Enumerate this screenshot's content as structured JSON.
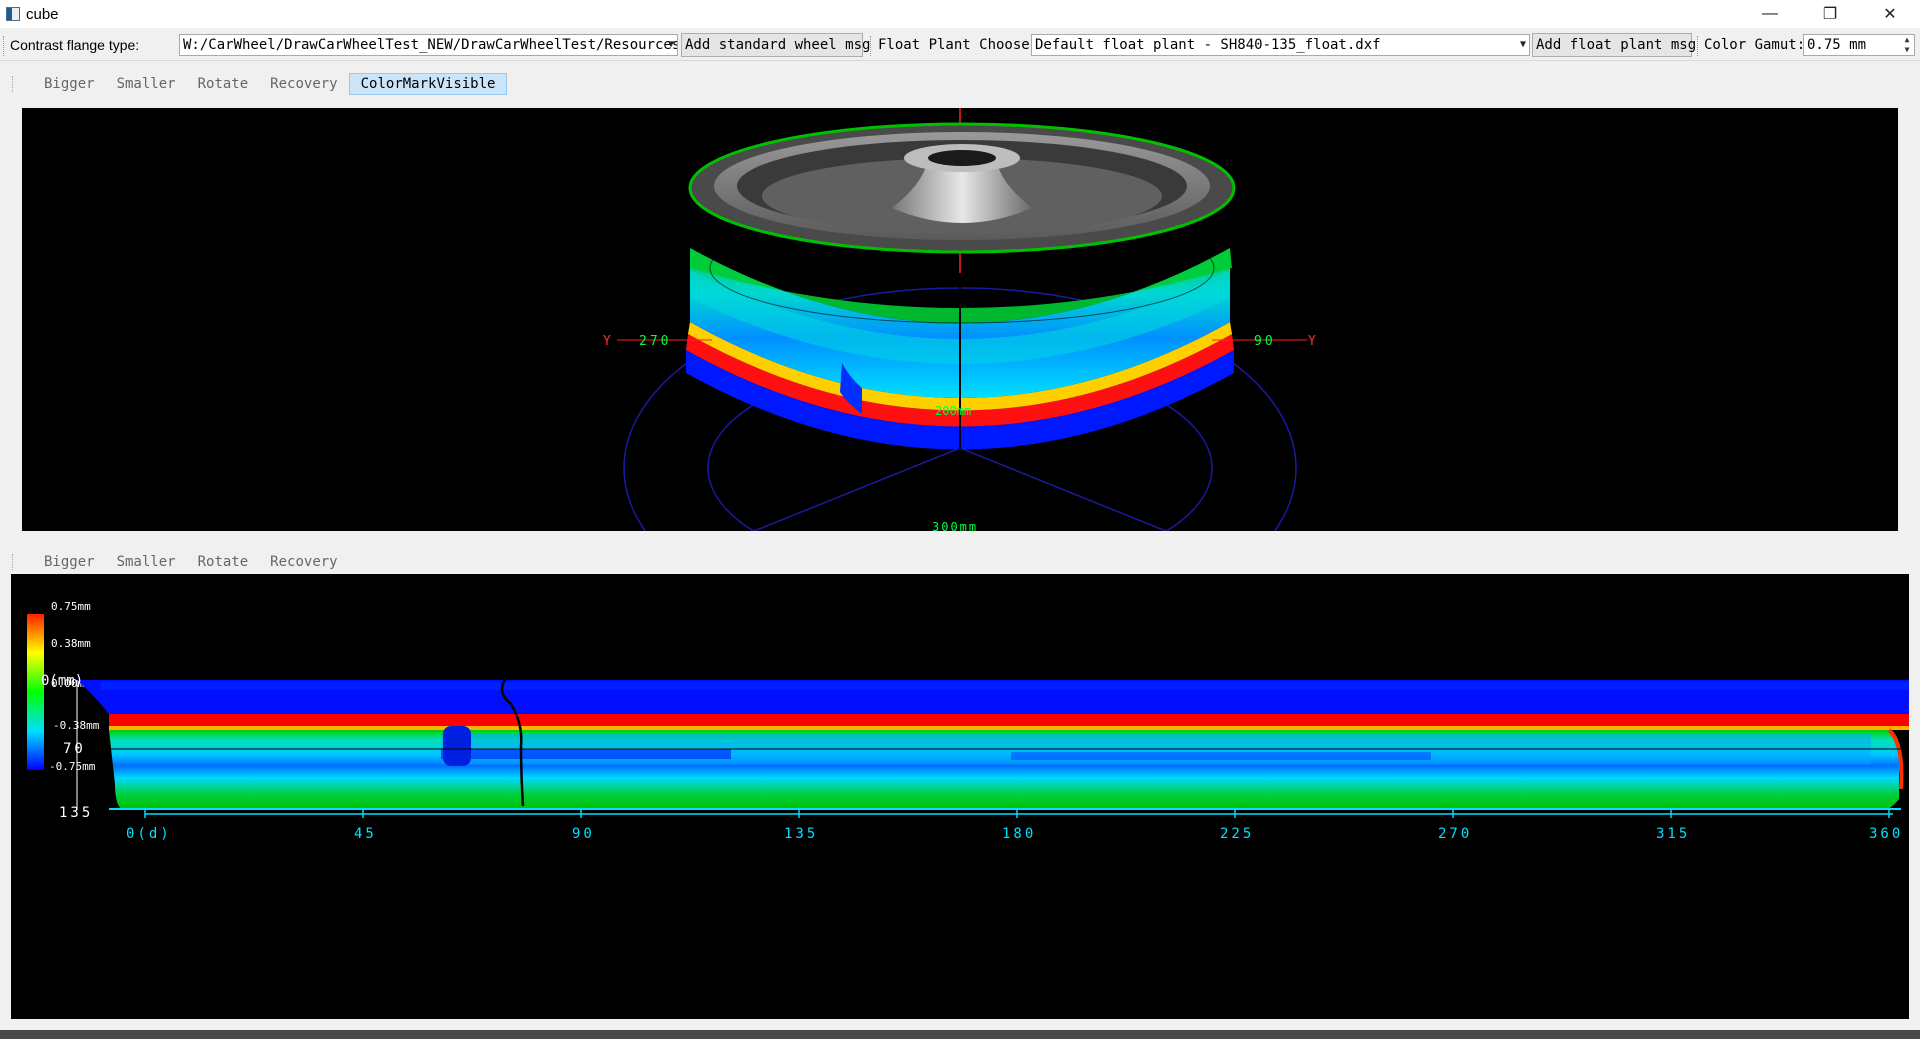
{
  "window": {
    "title": "cube",
    "minimize": "—",
    "restore": "❐",
    "close": "✕"
  },
  "toolbar": {
    "contrast_label": "Contrast flange type:",
    "contrast_value": "W:/CarWheel/DrawCarWheelTest_NEW/DrawCarWheelTest/Resources/",
    "add_standard_btn": "Add standard wheel msg",
    "float_label": "Float Plant Choose:",
    "float_value": "Default float plant - SH840-135_float.dxf",
    "add_float_btn": "Add float plant msg",
    "gamut_label": "Color Gamut:",
    "gamut_value": "0.75 mm"
  },
  "view3d_toolbar": {
    "items": [
      "Bigger",
      "Smaller",
      "Rotate",
      "Recovery",
      "ColorMarkVisible"
    ],
    "active": "ColorMarkVisible"
  },
  "view2d_toolbar": {
    "items": [
      "Bigger",
      "Smaller",
      "Rotate",
      "Recovery"
    ]
  },
  "view3d": {
    "left_axis_label": "Y",
    "left_angle": "270",
    "right_angle": "90",
    "right_axis_label": "Y",
    "ring_label_1": "200mm",
    "ring_label_2": "300mm"
  },
  "view2d": {
    "legend": [
      "0.75mm",
      "0.38mm",
      "0.00mm",
      "-0.38mm",
      "-0.75mm"
    ],
    "y_labels": [
      "0(mm)",
      "70",
      "135"
    ],
    "x_labels": [
      "0(d)",
      "45",
      "90",
      "135",
      "180",
      "225",
      "270",
      "315",
      "360"
    ]
  },
  "colors": {
    "red": "#ff0000",
    "green": "#00d000",
    "blue": "#0010ff",
    "cyan": "#00e0ff"
  }
}
